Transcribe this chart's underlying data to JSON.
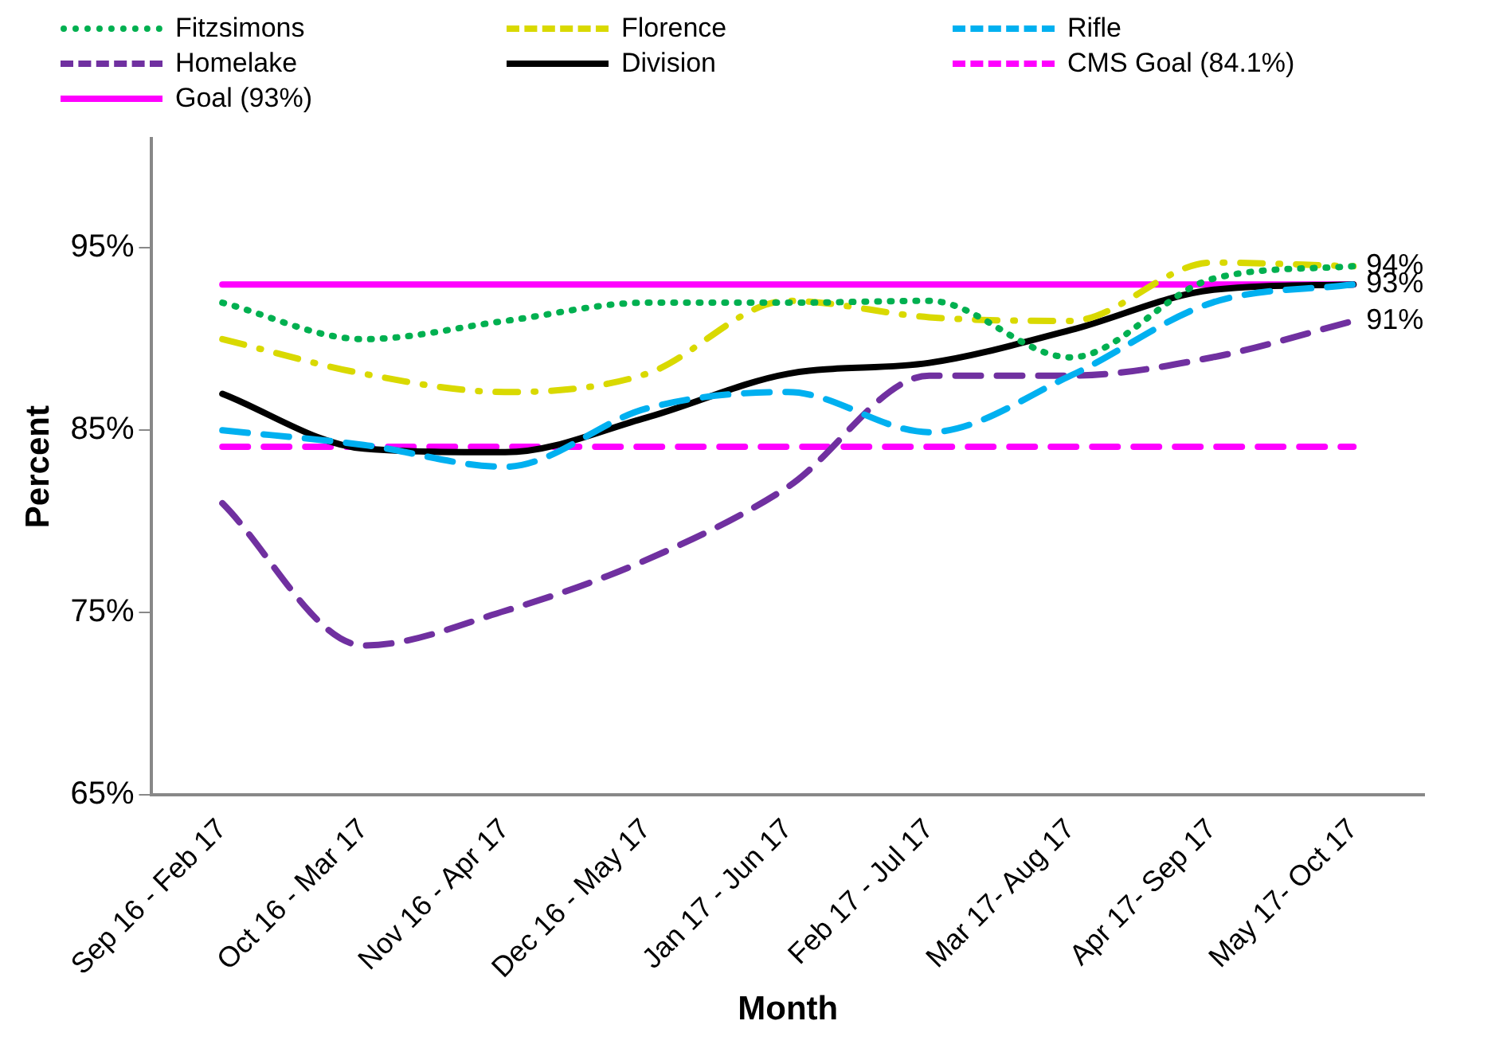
{
  "chart_data": {
    "type": "line",
    "xlabel": "Month",
    "ylabel": "Percent",
    "categories": [
      "Sep 16 - Feb 17",
      "Oct 16 - Mar 17",
      "Nov 16 - Apr 17",
      "Dec 16 - May 17",
      "Jan 17 - Jun 17",
      "Feb 17 - Jul 17",
      "Mar 17- Aug 17",
      "Apr 17- Sep 17",
      "May 17- Oct 17"
    ],
    "ylim": [
      65,
      101
    ],
    "yticks": [
      {
        "value": 65,
        "label": "65%"
      },
      {
        "value": 75,
        "label": "75%"
      },
      {
        "value": 85,
        "label": "85%"
      },
      {
        "value": 95,
        "label": "95%"
      }
    ],
    "grid": false,
    "legend": "top",
    "marker": "none",
    "series": [
      {
        "name": "Fitzsimons",
        "color": "#00b050",
        "line_style": "dotted",
        "values": [
          92,
          90,
          91,
          92,
          92,
          92.1,
          89,
          93.3,
          94
        ],
        "value_labels": [
          null,
          null,
          null,
          null,
          null,
          null,
          null,
          null,
          "94%"
        ]
      },
      {
        "name": "Florence",
        "color": "#d9d900",
        "line_style": "dashdot",
        "values": [
          90,
          88.1,
          87.1,
          88.1,
          92.1,
          91.2,
          91,
          94.2,
          94
        ]
      },
      {
        "name": "Rifle",
        "color": "#00b0f0",
        "line_style": "dashed",
        "values": [
          85,
          84.2,
          83,
          86.2,
          87.1,
          84.9,
          88,
          92,
          93
        ]
      },
      {
        "name": "Homelake",
        "color": "#7030a0",
        "line_style": "dashed",
        "values": [
          81,
          73.2,
          75.1,
          77.9,
          81.9,
          88,
          88,
          89,
          91
        ],
        "value_labels": [
          null,
          null,
          null,
          null,
          null,
          null,
          null,
          null,
          "91%"
        ]
      },
      {
        "name": "Division",
        "color": "#000000",
        "line_style": "solid",
        "values": [
          87,
          84,
          83.8,
          85.7,
          88.1,
          88.7,
          90.5,
          92.7,
          93
        ],
        "value_labels": [
          null,
          null,
          null,
          null,
          null,
          null,
          null,
          null,
          "93%"
        ]
      },
      {
        "name": "CMS Goal (84.1%)",
        "color": "#ff00ff",
        "line_style": "dashed",
        "values": [
          84.1,
          84.1,
          84.1,
          84.1,
          84.1,
          84.1,
          84.1,
          84.1,
          84.1
        ]
      },
      {
        "name": "Goal (93%)",
        "color": "#ff00ff",
        "line_style": "solid",
        "values": [
          93,
          93,
          93,
          93,
          93,
          93,
          93,
          93,
          93
        ]
      }
    ]
  }
}
